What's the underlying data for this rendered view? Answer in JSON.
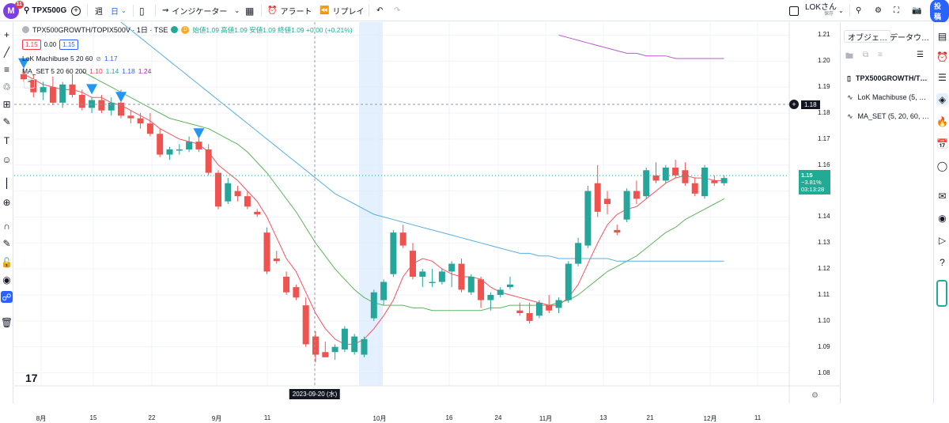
{
  "toolbar": {
    "badge": "11",
    "symbol": "TPX500G",
    "interval": "週",
    "chart_type": "日",
    "indicators": "インジケーター",
    "alert": "アラート",
    "replay": "リプレイ",
    "user_name": "LOKさん",
    "save": "保存",
    "publish": "投稿"
  },
  "legend": {
    "title": "TPX500GROWTH/TOPIX500V · 1日 · TSE",
    "ohlc": "始値1.09 高値1.09 安値1.09 終値1.09 +0.00 (+0.21%)",
    "bid": "1.15",
    "spread": "0.00",
    "ask": "1.15",
    "ind1": "LoK Machibuse 5 20 60",
    "ind1_val": "1.17",
    "ind2": "MA_SET 5 20 60 200",
    "ind2_v1": "1.10",
    "ind2_v2": "1.14",
    "ind2_v3": "1.18",
    "ind2_v4": "1.24"
  },
  "right_panel": {
    "tab1": "オブジェ…",
    "tab2": "データウ…",
    "items": [
      "TPX500GROWTH/T…",
      "LoK Machibuse (5, …",
      "MA_SET (5, 20, 60, …"
    ]
  },
  "price_axis": {
    "labels": [
      "1.21",
      "1.20",
      "1.19",
      "1.18",
      "1.17",
      "1.16",
      "1.15",
      "1.14",
      "1.13",
      "1.12",
      "1.11",
      "1.10",
      "1.09",
      "1.08"
    ],
    "crosshair_price": "1.18",
    "last_price": "1.15",
    "last_change": "−3.81%",
    "countdown": "03:13:28"
  },
  "time_axis": {
    "labels": [
      "8月",
      "15",
      "22",
      "9月",
      "11",
      "2023-09-20 (水)",
      "10月",
      "16",
      "24",
      "11月",
      "13",
      "21",
      "12月",
      "11"
    ]
  },
  "chart_data": {
    "type": "candlestick",
    "ylim": [
      1.075,
      1.215
    ],
    "candles": [
      [
        1.195,
        1.198,
        1.192,
        1.193
      ],
      [
        1.193,
        1.195,
        1.186,
        1.188
      ],
      [
        1.188,
        1.192,
        1.185,
        1.19
      ],
      [
        1.19,
        1.194,
        1.183,
        1.184
      ],
      [
        1.184,
        1.192,
        1.182,
        1.191
      ],
      [
        1.191,
        1.195,
        1.186,
        1.187
      ],
      [
        1.187,
        1.189,
        1.181,
        1.182
      ],
      [
        1.182,
        1.186,
        1.18,
        1.185
      ],
      [
        1.185,
        1.187,
        1.18,
        1.181
      ],
      [
        1.181,
        1.186,
        1.179,
        1.184
      ],
      [
        1.184,
        1.189,
        1.178,
        1.179
      ],
      [
        1.179,
        1.181,
        1.176,
        1.178
      ],
      [
        1.178,
        1.18,
        1.174,
        1.176
      ],
      [
        1.176,
        1.18,
        1.171,
        1.172
      ],
      [
        1.172,
        1.174,
        1.163,
        1.164
      ],
      [
        1.164,
        1.167,
        1.162,
        1.166
      ],
      [
        1.166,
        1.168,
        1.164,
        1.166
      ],
      [
        1.166,
        1.171,
        1.165,
        1.169
      ],
      [
        1.169,
        1.171,
        1.165,
        1.166
      ],
      [
        1.166,
        1.168,
        1.156,
        1.157
      ],
      [
        1.157,
        1.158,
        1.143,
        1.144
      ],
      [
        1.146,
        1.155,
        1.145,
        1.153
      ],
      [
        1.15,
        1.152,
        1.146,
        1.148
      ],
      [
        1.148,
        1.15,
        1.143,
        1.144
      ],
      [
        1.142,
        1.143,
        1.14,
        1.141
      ],
      [
        1.134,
        1.136,
        1.118,
        1.119
      ],
      [
        1.124,
        1.127,
        1.122,
        1.123
      ],
      [
        1.117,
        1.119,
        1.11,
        1.111
      ],
      [
        1.113,
        1.114,
        1.108,
        1.109
      ],
      [
        1.106,
        1.109,
        1.09,
        1.091
      ],
      [
        1.094,
        1.096,
        1.084,
        1.087
      ],
      [
        1.088,
        1.092,
        1.086,
        1.086
      ],
      [
        1.088,
        1.091,
        1.085,
        1.09
      ],
      [
        1.089,
        1.098,
        1.088,
        1.097
      ],
      [
        1.088,
        1.095,
        1.087,
        1.094
      ],
      [
        1.087,
        1.094,
        1.086,
        1.093
      ],
      [
        1.101,
        1.112,
        1.1,
        1.111
      ],
      [
        1.108,
        1.116,
        1.106,
        1.115
      ],
      [
        1.118,
        1.135,
        1.117,
        1.134
      ],
      [
        1.134,
        1.137,
        1.128,
        1.129
      ],
      [
        1.127,
        1.13,
        1.116,
        1.117
      ],
      [
        1.117,
        1.12,
        1.113,
        1.119
      ],
      [
        1.115,
        1.12,
        1.113,
        1.115
      ],
      [
        1.115,
        1.12,
        1.114,
        1.119
      ],
      [
        1.119,
        1.123,
        1.113,
        1.122
      ],
      [
        1.122,
        1.124,
        1.111,
        1.112
      ],
      [
        1.111,
        1.118,
        1.11,
        1.117
      ],
      [
        1.116,
        1.117,
        1.105,
        1.108
      ],
      [
        1.108,
        1.111,
        1.104,
        1.11
      ],
      [
        1.11,
        1.113,
        1.109,
        1.112
      ],
      [
        1.113,
        1.117,
        1.112,
        1.114
      ],
      [
        1.104,
        1.107,
        1.102,
        1.103
      ],
      [
        1.103,
        1.107,
        1.099,
        1.1
      ],
      [
        1.102,
        1.108,
        1.101,
        1.107
      ],
      [
        1.106,
        1.11,
        1.103,
        1.104
      ],
      [
        1.105,
        1.109,
        1.103,
        1.108
      ],
      [
        1.108,
        1.123,
        1.107,
        1.122
      ],
      [
        1.122,
        1.132,
        1.121,
        1.13
      ],
      [
        1.129,
        1.152,
        1.128,
        1.15
      ],
      [
        1.153,
        1.16,
        1.14,
        1.142
      ],
      [
        1.147,
        1.15,
        1.141,
        1.145
      ],
      [
        1.135,
        1.137,
        1.133,
        1.134
      ],
      [
        1.139,
        1.151,
        1.138,
        1.15
      ],
      [
        1.15,
        1.154,
        1.145,
        1.147
      ],
      [
        1.148,
        1.159,
        1.147,
        1.158
      ],
      [
        1.156,
        1.161,
        1.153,
        1.154
      ],
      [
        1.154,
        1.16,
        1.153,
        1.159
      ],
      [
        1.159,
        1.162,
        1.155,
        1.156
      ],
      [
        1.158,
        1.161,
        1.152,
        1.153
      ],
      [
        1.153,
        1.155,
        1.148,
        1.149
      ],
      [
        1.148,
        1.16,
        1.147,
        1.159
      ],
      [
        1.154,
        1.156,
        1.152,
        1.153
      ],
      [
        1.153,
        1.156,
        1.152,
        1.155
      ]
    ],
    "series": [
      {
        "name": "MA5",
        "color": "#f7525f",
        "values": [
          1.195,
          1.193,
          1.191,
          1.19,
          1.189,
          1.189,
          1.188,
          1.186,
          1.186,
          1.184,
          1.183,
          1.181,
          1.179,
          1.177,
          1.174,
          1.172,
          1.17,
          1.169,
          1.168,
          1.165,
          1.16,
          1.157,
          1.154,
          1.15,
          1.146,
          1.14,
          1.132,
          1.124,
          1.119,
          1.111,
          1.103,
          1.097,
          1.093,
          1.091,
          1.091,
          1.093,
          1.097,
          1.102,
          1.108,
          1.117,
          1.122,
          1.124,
          1.123,
          1.12,
          1.118,
          1.117,
          1.117,
          1.116,
          1.113,
          1.111,
          1.11,
          1.109,
          1.108,
          1.107,
          1.106,
          1.106,
          1.109,
          1.114,
          1.122,
          1.13,
          1.137,
          1.141,
          1.143,
          1.144,
          1.147,
          1.15,
          1.153,
          1.155,
          1.156,
          1.155,
          1.155,
          1.154,
          1.154
        ]
      },
      {
        "name": "MA20",
        "color": "#5fb35f",
        "values": [
          null,
          null,
          null,
          null,
          null,
          null,
          1.196,
          1.194,
          1.192,
          1.19,
          1.188,
          1.186,
          1.184,
          1.182,
          1.18,
          1.178,
          1.177,
          1.176,
          1.175,
          1.174,
          1.172,
          1.17,
          1.168,
          1.165,
          1.161,
          1.157,
          1.152,
          1.147,
          1.142,
          1.136,
          1.13,
          1.125,
          1.12,
          1.116,
          1.112,
          1.109,
          1.107,
          1.106,
          1.106,
          1.106,
          1.105,
          1.105,
          1.104,
          1.104,
          1.104,
          1.104,
          1.104,
          1.104,
          1.105,
          1.105,
          1.106,
          1.106,
          1.106,
          1.106,
          1.106,
          1.107,
          1.108,
          1.11,
          1.113,
          1.116,
          1.119,
          1.121,
          1.123,
          1.125,
          1.128,
          1.131,
          1.134,
          1.136,
          1.139,
          1.141,
          1.143,
          1.145,
          1.147
        ]
      },
      {
        "name": "MA60",
        "color": "#5aaee6",
        "values": [
          null,
          null,
          null,
          null,
          null,
          null,
          null,
          null,
          1.221,
          1.218,
          1.215,
          1.212,
          1.209,
          1.206,
          1.203,
          1.2,
          1.197,
          1.194,
          1.191,
          1.188,
          1.185,
          1.182,
          1.179,
          1.176,
          1.173,
          1.17,
          1.167,
          1.164,
          1.161,
          1.158,
          1.155,
          1.152,
          1.149,
          1.147,
          1.145,
          1.143,
          1.141,
          1.14,
          1.139,
          1.138,
          1.137,
          1.136,
          1.135,
          1.134,
          1.133,
          1.132,
          1.131,
          1.13,
          1.129,
          1.128,
          1.127,
          1.126,
          1.126,
          1.125,
          1.125,
          1.124,
          1.124,
          1.124,
          1.124,
          1.124,
          1.124,
          1.123,
          1.123,
          1.123,
          1.123,
          1.123,
          1.123,
          1.123,
          1.123,
          1.123,
          1.123,
          1.123,
          1.123
        ]
      },
      {
        "name": "MA200",
        "color": "#b85bc9",
        "values": [
          null,
          null,
          null,
          null,
          null,
          null,
          null,
          null,
          null,
          null,
          null,
          null,
          null,
          null,
          null,
          null,
          null,
          null,
          null,
          null,
          null,
          null,
          null,
          null,
          null,
          null,
          null,
          null,
          null,
          null,
          null,
          null,
          null,
          null,
          null,
          null,
          null,
          null,
          null,
          null,
          null,
          null,
          null,
          null,
          null,
          null,
          null,
          null,
          null,
          null,
          null,
          null,
          null,
          null,
          null,
          1.21,
          1.209,
          1.208,
          1.207,
          1.206,
          1.205,
          1.204,
          1.203,
          1.203,
          1.202,
          1.202,
          1.202,
          1.201,
          1.201,
          1.201,
          1.201,
          1.201,
          1.201
        ]
      }
    ],
    "signals": [
      {
        "index": 0,
        "price": 1.199
      },
      {
        "index": 7,
        "price": 1.189
      },
      {
        "index": 10,
        "price": 1.186
      },
      {
        "index": 18,
        "price": 1.172
      }
    ]
  }
}
